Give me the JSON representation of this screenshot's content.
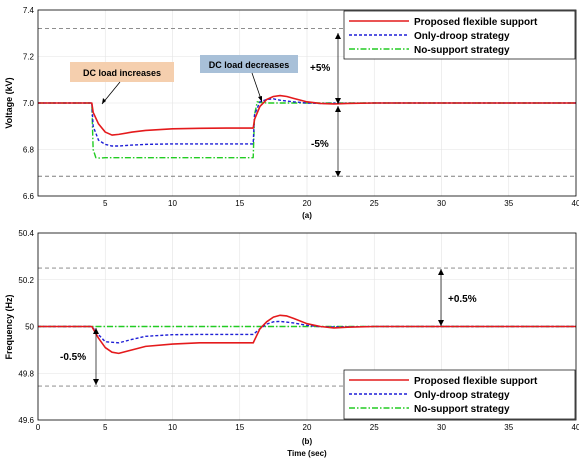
{
  "colors": {
    "proposed": "#e41a1c",
    "droop": "#1f1fd6",
    "nosupport": "#22cc22",
    "limit": "#7f7f7f",
    "annot_increase_bg": "#f5cfae",
    "annot_decrease_bg": "#a8c0d8"
  },
  "chart_data": [
    {
      "type": "line",
      "panel_label": "(a)",
      "xlabel": "",
      "ylabel": "Voltage (kV)",
      "xlim": [
        0,
        40
      ],
      "ylim": [
        6.6,
        7.4
      ],
      "xticks": [
        5,
        10,
        15,
        20,
        25,
        30,
        35,
        40
      ],
      "yticks": [
        6.6,
        6.8,
        7.0,
        7.2,
        7.4
      ],
      "ytick_labels": [
        "6.6",
        "6.8",
        "7.0",
        "7.2",
        "7.4"
      ],
      "legend_position": "top-right",
      "limit_lines": [
        7.32,
        6.685
      ],
      "annotations": {
        "increase": "DC load increases",
        "decrease": "DC load decreases",
        "plus": "+5%",
        "minus": "-5%"
      },
      "series": [
        {
          "name": "Proposed flexible support",
          "color_key": "proposed",
          "dash": "solid",
          "x": [
            0,
            4,
            4.1,
            4.5,
            5,
            5.5,
            6,
            7,
            8,
            10,
            12,
            14,
            16,
            16.1,
            16.5,
            17,
            17.5,
            18,
            18.5,
            19,
            20,
            21,
            22,
            23,
            25,
            30,
            40
          ],
          "y": [
            7.0,
            7.0,
            6.96,
            6.91,
            6.875,
            6.862,
            6.865,
            6.875,
            6.882,
            6.889,
            6.891,
            6.892,
            6.892,
            6.93,
            6.985,
            7.015,
            7.028,
            7.032,
            7.028,
            7.02,
            7.005,
            6.998,
            6.996,
            6.998,
            7.0,
            7.0,
            7.0
          ]
        },
        {
          "name": "Only-droop strategy",
          "color_key": "droop",
          "dash": "dashed",
          "x": [
            0,
            4,
            4.1,
            4.5,
            5,
            5.5,
            6,
            7,
            8,
            10,
            12,
            14,
            16,
            16.1,
            16.5,
            17,
            17.5,
            18,
            19,
            20,
            21,
            22,
            25,
            30,
            40
          ],
          "y": [
            7.0,
            7.0,
            6.9,
            6.84,
            6.822,
            6.815,
            6.815,
            6.819,
            6.822,
            6.824,
            6.824,
            6.824,
            6.824,
            6.95,
            7.005,
            7.015,
            7.018,
            7.012,
            7.005,
            7.0,
            6.998,
            6.999,
            7.0,
            7.0,
            7.0
          ]
        },
        {
          "name": "No-support strategy",
          "color_key": "nosupport",
          "dash": "dashdot",
          "x": [
            0,
            4,
            4.1,
            4.3,
            4.6,
            5,
            8,
            12,
            16,
            16.1,
            16.3,
            16.6,
            17,
            20,
            30,
            40
          ],
          "y": [
            7.0,
            7.0,
            6.8,
            6.765,
            6.763,
            6.765,
            6.765,
            6.765,
            6.765,
            6.95,
            7.005,
            7.002,
            7.0,
            7.0,
            7.0,
            7.0
          ]
        }
      ]
    },
    {
      "type": "line",
      "panel_label": "(b)",
      "xlabel": "Time (sec)",
      "ylabel": "Frequency (Hz)",
      "xlim": [
        0,
        40
      ],
      "ylim": [
        49.6,
        50.4
      ],
      "xticks": [
        0,
        5,
        10,
        15,
        20,
        25,
        30,
        35,
        40
      ],
      "yticks": [
        49.6,
        49.8,
        50,
        50.2,
        50.4
      ],
      "ytick_labels": [
        "49.6",
        "49.8",
        "50",
        "50.2",
        "50.4"
      ],
      "legend_position": "bottom-right",
      "limit_lines": [
        50.25,
        49.745
      ],
      "annotations": {
        "plus": "+0.5%",
        "minus": "-0.5%"
      },
      "series": [
        {
          "name": "Proposed flexible support",
          "color_key": "proposed",
          "dash": "solid",
          "x": [
            0,
            4,
            4.5,
            5,
            5.5,
            6,
            7,
            8,
            10,
            12,
            14,
            16,
            16.5,
            17,
            17.5,
            18,
            18.5,
            19,
            20,
            21,
            22,
            23,
            25,
            30,
            40
          ],
          "y": [
            50.0,
            50.0,
            49.95,
            49.91,
            49.89,
            49.885,
            49.9,
            49.915,
            49.925,
            49.93,
            49.93,
            49.93,
            49.99,
            50.02,
            50.04,
            50.048,
            50.045,
            50.035,
            50.012,
            50.0,
            49.994,
            49.997,
            50.0,
            50.0,
            50.0
          ]
        },
        {
          "name": "Only-droop strategy",
          "color_key": "droop",
          "dash": "dashed",
          "x": [
            0,
            4,
            4.5,
            5,
            6,
            7,
            8,
            10,
            12,
            14,
            16,
            16.5,
            17,
            17.5,
            18,
            19,
            20,
            21,
            22,
            25,
            30,
            40
          ],
          "y": [
            50.0,
            50.0,
            49.965,
            49.935,
            49.93,
            49.945,
            49.958,
            49.965,
            49.966,
            49.966,
            49.966,
            49.99,
            50.01,
            50.02,
            50.022,
            50.015,
            50.005,
            49.999,
            49.998,
            50.0,
            50.0,
            50.0
          ]
        },
        {
          "name": "No-support strategy",
          "color_key": "nosupport",
          "dash": "dashdot",
          "x": [
            0,
            40
          ],
          "y": [
            50.0,
            50.0
          ]
        }
      ]
    }
  ]
}
